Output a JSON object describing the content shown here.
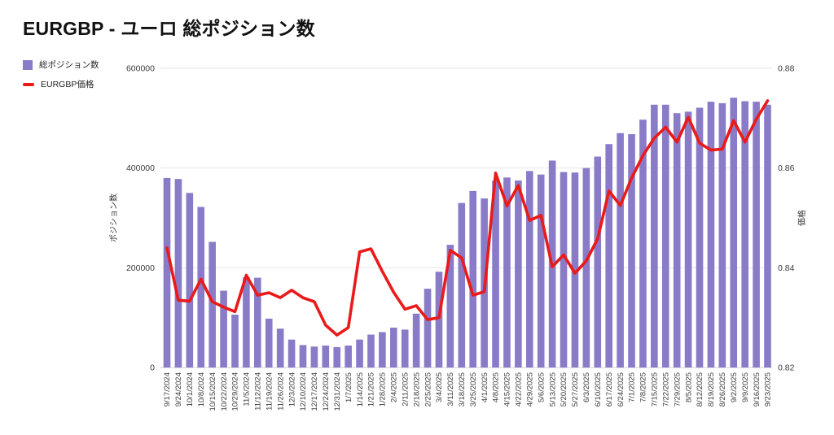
{
  "page": {
    "title": "EURGBP - ユーロ 総ポジション数"
  },
  "legend": [
    {
      "label": "総ポジション数",
      "marker": "square",
      "color": "#8A7BC8"
    },
    {
      "label": "EURGBP価格",
      "marker": "dash",
      "color": "#EA1A1A"
    }
  ],
  "chart_data": {
    "type": "bar+line",
    "title": "EURGBP - ユーロ 総ポジション数",
    "grid": true,
    "legend_position": "top-left",
    "categories": [
      "9/17/2024",
      "9/24/2024",
      "10/1/2024",
      "10/8/2024",
      "10/15/2024",
      "10/22/2024",
      "10/29/2024",
      "11/5/2024",
      "11/12/2024",
      "11/19/2024",
      "11/26/2024",
      "12/3/2024",
      "12/10/2024",
      "12/17/2024",
      "12/24/2024",
      "12/31/2024",
      "1/7/2025",
      "1/14/2025",
      "1/21/2025",
      "1/28/2025",
      "2/4/2025",
      "2/11/2025",
      "2/18/2025",
      "2/25/2025",
      "3/4/2025",
      "3/11/2025",
      "3/18/2025",
      "3/25/2025",
      "4/1/2025",
      "4/8/2025",
      "4/15/2025",
      "4/22/2025",
      "4/29/2025",
      "5/6/2025",
      "5/13/2025",
      "5/20/2025",
      "5/27/2025",
      "6/3/2025",
      "6/10/2025",
      "6/17/2025",
      "6/24/2025",
      "7/1/2025",
      "7/8/2025",
      "7/15/2025",
      "7/22/2025",
      "7/29/2025",
      "8/5/2025",
      "8/12/2025",
      "8/19/2025",
      "8/26/2025",
      "9/2/2025",
      "9/9/2025",
      "9/16/2025",
      "9/23/2025"
    ],
    "series": [
      {
        "name": "総ポジション数",
        "type": "bar",
        "axis": "left",
        "color": "#8A7BC8",
        "values": [
          380000,
          378000,
          350000,
          322000,
          252000,
          154000,
          106000,
          181000,
          180000,
          98000,
          78000,
          56000,
          45000,
          42000,
          44000,
          41000,
          44000,
          56000,
          66000,
          71000,
          80000,
          76000,
          108000,
          158000,
          192000,
          246000,
          330000,
          354000,
          339000,
          375000,
          381000,
          375000,
          394000,
          387000,
          415000,
          392000,
          391000,
          400000,
          423000,
          448000,
          470000,
          468000,
          497000,
          527000,
          527000,
          510000,
          513000,
          521000,
          533000,
          530000,
          541000,
          534000,
          533000,
          527000
        ]
      },
      {
        "name": "EURGBP価格",
        "type": "line",
        "axis": "right",
        "color": "#EA1A1A",
        "values": [
          0.844,
          0.8335,
          0.8333,
          0.8377,
          0.8332,
          0.8321,
          0.8312,
          0.8385,
          0.8345,
          0.835,
          0.834,
          0.8355,
          0.834,
          0.8332,
          0.8285,
          0.8265,
          0.828,
          0.8432,
          0.8438,
          0.8393,
          0.8351,
          0.8317,
          0.8324,
          0.8296,
          0.83,
          0.8435,
          0.842,
          0.8345,
          0.8352,
          0.859,
          0.8524,
          0.8565,
          0.8495,
          0.8505,
          0.8402,
          0.8426,
          0.8389,
          0.8414,
          0.8458,
          0.8554,
          0.8525,
          0.858,
          0.8625,
          0.866,
          0.8682,
          0.8652,
          0.8702,
          0.865,
          0.8636,
          0.8638,
          0.8695,
          0.8652,
          0.8698,
          0.8735
        ]
      }
    ],
    "left_axis": {
      "title": "ポジション数",
      "ticks": [
        0,
        200000,
        400000,
        600000
      ],
      "range": [
        0,
        600000
      ]
    },
    "right_axis": {
      "title": "価格",
      "ticks": [
        0.82,
        0.84,
        0.86,
        0.88
      ],
      "range": [
        0.82,
        0.88
      ]
    }
  }
}
